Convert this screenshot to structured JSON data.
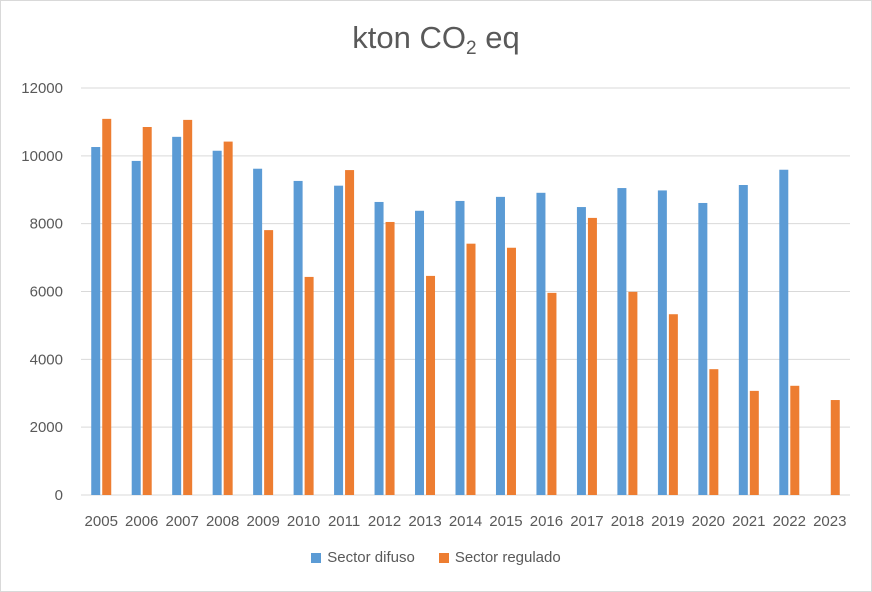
{
  "chart_data": {
    "type": "bar",
    "title_main": "kton CO",
    "title_sub": "2",
    "title_tail": " eq",
    "categories": [
      "2005",
      "2006",
      "2007",
      "2008",
      "2009",
      "2010",
      "2011",
      "2012",
      "2013",
      "2014",
      "2015",
      "2016",
      "2017",
      "2018",
      "2019",
      "2020",
      "2021",
      "2022",
      "2023"
    ],
    "series": [
      {
        "name": "Sector difuso",
        "color": "#5B9BD5",
        "values": [
          10260,
          9850,
          10560,
          10150,
          9620,
          9260,
          9120,
          8640,
          8380,
          8670,
          8790,
          8910,
          8490,
          9050,
          8980,
          8610,
          9140,
          9590,
          null
        ]
      },
      {
        "name": "Sector regulado",
        "color": "#ED7D31",
        "values": [
          11090,
          10850,
          11060,
          10420,
          7810,
          6430,
          9580,
          8050,
          6460,
          7410,
          7290,
          5960,
          8170,
          5990,
          5330,
          3710,
          3070,
          3220,
          2800
        ]
      }
    ],
    "ylim": [
      0,
      12000
    ],
    "yticks": [
      "0",
      "2000",
      "4000",
      "6000",
      "8000",
      "10000",
      "12000"
    ],
    "grid": true,
    "legend_position": "bottom"
  }
}
